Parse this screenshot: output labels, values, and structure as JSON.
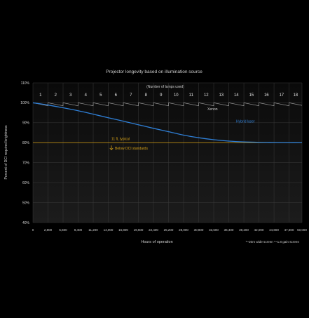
{
  "chart_data": {
    "type": "line",
    "title": "Projector longevity based on illumination source",
    "xlabel": "Hours of operation",
    "ylabel": "Percent of DCI required brightness",
    "footnote": "*~20m wide screen *~1.8 gain screen",
    "xlim": [
      0,
      50000
    ],
    "ylim": [
      40,
      110
    ],
    "x_ticks": [
      0,
      2800,
      5600,
      8400,
      11200,
      14000,
      16800,
      19600,
      22400,
      25200,
      28000,
      30800,
      33600,
      36400,
      39200,
      42000,
      44800,
      47600,
      50000
    ],
    "x_tick_labels": [
      "0",
      "2,800",
      "5,600",
      "8,400",
      "11,200",
      "14,000",
      "16,800",
      "19,600",
      "22,400",
      "25,200",
      "28,000",
      "30,800",
      "33,600",
      "36,400",
      "39,200",
      "42,000",
      "44,800",
      "47,600",
      "50,000"
    ],
    "y_ticks": [
      40,
      50,
      60,
      70,
      80,
      90,
      100,
      110
    ],
    "y_tick_labels": [
      "40%",
      "50%",
      "60%",
      "70%",
      "80%",
      "90%",
      "100%",
      "110%"
    ],
    "grid": true,
    "lamps": {
      "label": "(Number of lamps used)",
      "numbers": [
        "1",
        "2",
        "3",
        "4",
        "5",
        "6",
        "7",
        "8",
        "9",
        "10",
        "11",
        "12",
        "13",
        "14",
        "15",
        "16",
        "17",
        "18"
      ]
    },
    "series": [
      {
        "name": "Xenon",
        "color": "#9a9a9a",
        "style": "sawtooth",
        "values": [
          {
            "x": 0,
            "y": 100
          },
          {
            "x": 2800,
            "y": 98.5
          },
          {
            "x": 2800,
            "y": 100
          },
          {
            "x": 5600,
            "y": 98.5
          },
          {
            "x": 5600,
            "y": 100
          },
          {
            "x": 8400,
            "y": 98.5
          },
          {
            "x": 8400,
            "y": 100
          },
          {
            "x": 11200,
            "y": 98.5
          },
          {
            "x": 11200,
            "y": 100
          },
          {
            "x": 14000,
            "y": 98.5
          },
          {
            "x": 14000,
            "y": 100
          },
          {
            "x": 16800,
            "y": 98.5
          },
          {
            "x": 16800,
            "y": 100
          },
          {
            "x": 19600,
            "y": 98.5
          },
          {
            "x": 19600,
            "y": 100
          },
          {
            "x": 22400,
            "y": 98.5
          },
          {
            "x": 22400,
            "y": 100
          },
          {
            "x": 25200,
            "y": 98.5
          },
          {
            "x": 25200,
            "y": 100
          },
          {
            "x": 28000,
            "y": 98.5
          },
          {
            "x": 28000,
            "y": 100
          },
          {
            "x": 30800,
            "y": 98.5
          },
          {
            "x": 30800,
            "y": 100
          },
          {
            "x": 33600,
            "y": 98.5
          },
          {
            "x": 33600,
            "y": 100
          },
          {
            "x": 36400,
            "y": 98.5
          },
          {
            "x": 36400,
            "y": 100
          },
          {
            "x": 39200,
            "y": 98.5
          },
          {
            "x": 39200,
            "y": 100
          },
          {
            "x": 42000,
            "y": 98.5
          },
          {
            "x": 42000,
            "y": 100
          },
          {
            "x": 44800,
            "y": 98.5
          },
          {
            "x": 44800,
            "y": 100
          },
          {
            "x": 47600,
            "y": 98.5
          },
          {
            "x": 47600,
            "y": 100
          },
          {
            "x": 50000,
            "y": 98.7
          }
        ]
      },
      {
        "name": "Hybrid laser",
        "color": "#2f7fd6",
        "style": "smooth",
        "values": [
          {
            "x": 0,
            "y": 100
          },
          {
            "x": 2800,
            "y": 98.9
          },
          {
            "x": 5600,
            "y": 97.5
          },
          {
            "x": 8400,
            "y": 96
          },
          {
            "x": 11200,
            "y": 94.3
          },
          {
            "x": 14000,
            "y": 92.5
          },
          {
            "x": 16800,
            "y": 90.8
          },
          {
            "x": 19600,
            "y": 89
          },
          {
            "x": 22400,
            "y": 87.2
          },
          {
            "x": 25200,
            "y": 85.5
          },
          {
            "x": 28000,
            "y": 83.8
          },
          {
            "x": 30800,
            "y": 82.5
          },
          {
            "x": 33600,
            "y": 81.5
          },
          {
            "x": 36400,
            "y": 80.8
          },
          {
            "x": 39200,
            "y": 80.4
          },
          {
            "x": 42000,
            "y": 80.2
          },
          {
            "x": 44800,
            "y": 80.1
          },
          {
            "x": 47600,
            "y": 80
          },
          {
            "x": 50000,
            "y": 80
          }
        ]
      }
    ],
    "reference_line": {
      "y": 80,
      "color": "#d4a017",
      "label": "11 fL typical",
      "sublabel": "Below DCI standards"
    },
    "series_labels": {
      "xenon": "Xenon",
      "laser": "Hybrid laser"
    }
  }
}
